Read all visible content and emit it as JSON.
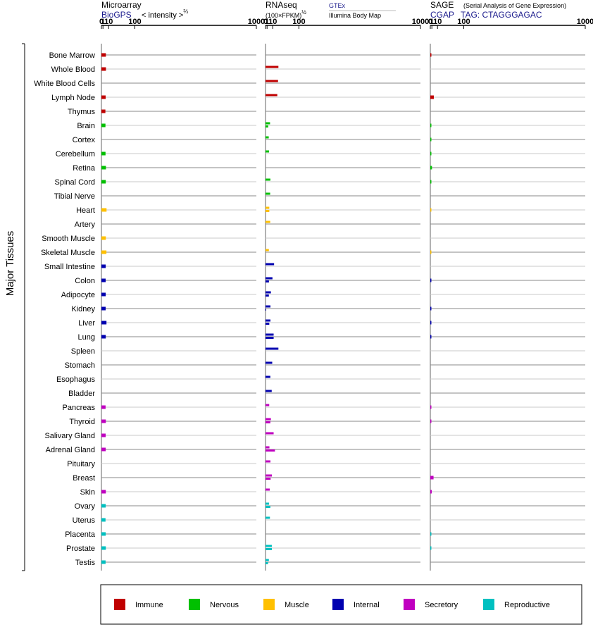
{
  "chart_data": {
    "type": "bar",
    "side_label": "Major Tissues",
    "categories": [
      "Bone Marrow",
      "Whole Blood",
      "White Blood Cells",
      "Lymph Node",
      "Thymus",
      "Brain",
      "Cortex",
      "Cerebellum",
      "Retina",
      "Spinal Cord",
      "Tibial Nerve",
      "Heart",
      "Artery",
      "Smooth Muscle",
      "Skeletal Muscle",
      "Small Intestine",
      "Colon",
      "Adipocyte",
      "Kidney",
      "Liver",
      "Lung",
      "Spleen",
      "Stomach",
      "Esophagus",
      "Bladder",
      "Pancreas",
      "Thyroid",
      "Salivary Gland",
      "Adrenal Gland",
      "Pituitary",
      "Breast",
      "Skin",
      "Ovary",
      "Uterus",
      "Placenta",
      "Prostate",
      "Testis"
    ],
    "groups": [
      "Immune",
      "Immune",
      "Immune",
      "Immune",
      "Immune",
      "Nervous",
      "Nervous",
      "Nervous",
      "Nervous",
      "Nervous",
      "Nervous",
      "Muscle",
      "Muscle",
      "Muscle",
      "Muscle",
      "Internal",
      "Internal",
      "Internal",
      "Internal",
      "Internal",
      "Internal",
      "Internal",
      "Internal",
      "Internal",
      "Internal",
      "Secretory",
      "Secretory",
      "Secretory",
      "Secretory",
      "Secretory",
      "Secretory",
      "Secretory",
      "Reproductive",
      "Reproductive",
      "Reproductive",
      "Reproductive",
      "Reproductive"
    ],
    "legend": [
      {
        "name": "Immune",
        "color": "#c00000"
      },
      {
        "name": "Nervous",
        "color": "#00c000"
      },
      {
        "name": "Muscle",
        "color": "#ffc000"
      },
      {
        "name": "Internal",
        "color": "#0000b0"
      },
      {
        "name": "Secretory",
        "color": "#c000c0"
      },
      {
        "name": "Reproductive",
        "color": "#00c0c0"
      }
    ],
    "axis_ticks": [
      "0",
      "1",
      "10",
      "100",
      "1000"
    ],
    "axis_tick_values": [
      0,
      1,
      10,
      100,
      1000
    ],
    "scale_exponent": 0.6667,
    "panels": [
      {
        "title": "Microarray",
        "source": "BioGPS",
        "note": "< intensity >",
        "note_exponent": "⅔",
        "xlim": [
          0,
          1000
        ],
        "bars": [
          [
            4.9
          ],
          [
            5.0
          ],
          [],
          [
            4.5
          ],
          [
            4.1
          ],
          [
            4.2
          ],
          [],
          [
            4.3
          ],
          [
            5.0
          ],
          [
            4.7
          ],
          [],
          [
            6.0
          ],
          [],
          [
            4.8
          ],
          [
            5.8
          ],
          [
            4.6
          ],
          [
            4.5
          ],
          [
            4.6
          ],
          [
            4.5
          ],
          [
            5.9
          ],
          [
            4.7
          ],
          [],
          [],
          [],
          [],
          [
            4.4
          ],
          [
            4.8
          ],
          [
            4.5
          ],
          [
            4.6
          ],
          [],
          [],
          [
            4.8
          ],
          [
            4.6
          ],
          [
            4.3
          ],
          [
            4.6
          ],
          [
            4.8
          ],
          [
            4.4
          ]
        ]
      },
      {
        "title": "RNAseq",
        "note": "(100×FPKM)",
        "note_exponent": "½",
        "sources": [
          "GTEx",
          "Illumina Body Map"
        ],
        "xlim": [
          0,
          1000
        ],
        "bars": [
          [],
          [
            24
          ],
          [
            23
          ],
          [
            21
          ],
          [],
          [
            5.0,
            2.3
          ],
          [
            3.0
          ],
          [
            3.5
          ],
          [],
          [
            5.6
          ],
          [
            5.2
          ],
          [
            3.8,
            3.8
          ],
          [
            5.3
          ],
          [],
          [
            3.2
          ],
          [
            13
          ],
          [
            9.5,
            3.3
          ],
          [
            6.5,
            3.2
          ],
          [
            5.7,
            0.05
          ],
          [
            5.7,
            3.8
          ],
          [
            12,
            12
          ],
          [
            24
          ],
          [
            9.0
          ],
          [
            5.5
          ],
          [
            8.0
          ],
          [
            3.7
          ],
          [
            6.5,
            5.5
          ],
          [
            12
          ],
          [
            4.0,
            15
          ],
          [
            5.7
          ],
          [
            8.3,
            6.0
          ],
          [
            4.5
          ],
          [
            3.5,
            5.5
          ],
          [
            4.8
          ],
          [],
          [
            8.2,
            8.2
          ],
          [
            3.2,
            2.0
          ]
        ]
      },
      {
        "title": "SAGE",
        "source_full": "(Serial Analysis of Gene Expression)",
        "source": "CGAP",
        "tag": "TAG: CTAGGGAGAC",
        "xlim": [
          0,
          1000
        ],
        "bars": [
          [
            0.01
          ],
          [],
          [],
          [
            3.4
          ],
          [],
          [
            0.01
          ],
          [
            0.01
          ],
          [
            0.01
          ],
          [
            1.1
          ],
          [
            0.01
          ],
          [],
          [
            0.001
          ],
          [],
          [],
          [
            0.001
          ],
          [],
          [
            0.02
          ],
          [],
          [
            0.02
          ],
          [
            0.02
          ],
          [
            0.02
          ],
          [],
          [],
          [],
          [],
          [
            0.02
          ],
          [
            0.02
          ],
          [],
          [],
          [],
          [
            3.0
          ],
          [
            0.9
          ],
          [],
          [],
          [
            0.01
          ],
          [
            0.01
          ],
          []
        ]
      }
    ]
  }
}
